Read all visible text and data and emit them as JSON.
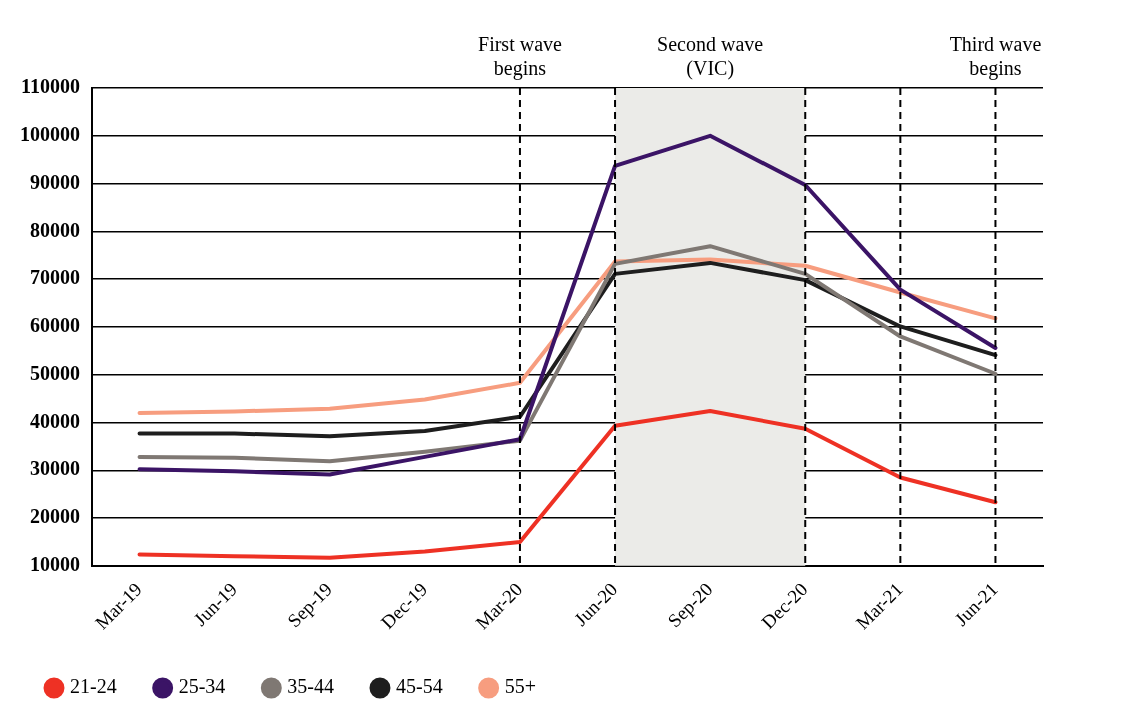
{
  "chart_data": {
    "type": "line",
    "categories": [
      "Mar-19",
      "Jun-19",
      "Sep-19",
      "Dec-19",
      "Mar-20",
      "Jun-20",
      "Sep-20",
      "Dec-20",
      "Mar-21",
      "Jun-21"
    ],
    "series": [
      {
        "name": "21-24",
        "color": "#ee3124",
        "values": [
          12400,
          12000,
          11700,
          13000,
          15000,
          39300,
          42400,
          38700,
          28500,
          23300
        ]
      },
      {
        "name": "25-34",
        "color": "#3b1466",
        "values": [
          30200,
          29800,
          29100,
          32800,
          36500,
          93700,
          100000,
          89700,
          67800,
          55600
        ]
      },
      {
        "name": "35-44",
        "color": "#7f7873",
        "values": [
          32800,
          32600,
          31900,
          33900,
          36200,
          73200,
          76900,
          71100,
          58000,
          50200
        ]
      },
      {
        "name": "45-54",
        "color": "#1e1e1e",
        "values": [
          37700,
          37700,
          37100,
          38200,
          41200,
          71100,
          73400,
          69800,
          60100,
          54100
        ]
      },
      {
        "name": "55+",
        "color": "#f79d7f",
        "values": [
          42000,
          42300,
          42900,
          44800,
          48300,
          73700,
          74100,
          72800,
          67200,
          61800
        ]
      }
    ],
    "ylim": [
      10000,
      110000
    ],
    "yticks": [
      10000,
      20000,
      30000,
      40000,
      50000,
      60000,
      70000,
      80000,
      90000,
      100000,
      110000
    ],
    "grid": "y",
    "legend": "bottom",
    "marker": "none",
    "line_style": "solid",
    "ref_lines": [
      {
        "axis": "x",
        "value": "Mar-20",
        "label": "First wave begins",
        "line_style": "dashed"
      },
      {
        "axis": "x",
        "value": "Jun-20",
        "label": null,
        "line_style": "dashed"
      },
      {
        "axis": "x",
        "value": "Dec-20",
        "label": null,
        "line_style": "dashed"
      },
      {
        "axis": "x",
        "value": "Mar-21",
        "label": null,
        "line_style": "dashed"
      },
      {
        "axis": "x",
        "value": "Jun-21",
        "label": "Third wave begins",
        "line_style": "dashed"
      }
    ],
    "bands": [
      {
        "axis": "x",
        "from": "Jun-20",
        "to": "Dec-20",
        "label": "Second wave (VIC)",
        "color": "#ebebe8"
      }
    ]
  }
}
